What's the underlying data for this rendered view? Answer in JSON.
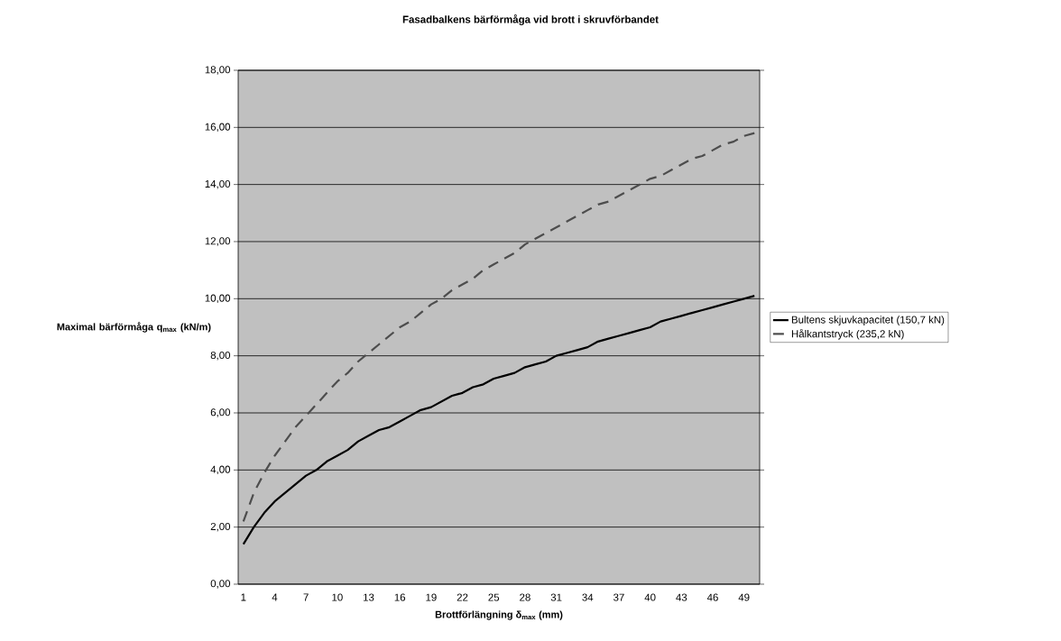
{
  "chart_data": {
    "type": "line",
    "title": "Fasadbalkens bärförmåga vid brott i skruvförbandet",
    "xlabel": "Brottförlängning δ$_{max}$ (mm)",
    "ylabel": "Maximal bärförmåga q$_{max}$ (kN/m)",
    "categories": [
      "1",
      null,
      null,
      "4",
      null,
      null,
      "7",
      null,
      null,
      "10",
      null,
      null,
      "13",
      null,
      null,
      "16",
      null,
      null,
      "19",
      null,
      null,
      "22",
      null,
      null,
      "25",
      null,
      null,
      "28",
      null,
      null,
      "31",
      null,
      null,
      "34",
      null,
      null,
      "37",
      null,
      null,
      "40",
      null,
      null,
      "43",
      null,
      null,
      "46",
      null,
      null,
      "49",
      null
    ],
    "ylim": [
      0,
      18
    ],
    "yticks": [
      {
        "value": 0,
        "label": "0,00"
      },
      {
        "value": 2,
        "label": "2,00"
      },
      {
        "value": 4,
        "label": "4,00"
      },
      {
        "value": 6,
        "label": "6,00"
      },
      {
        "value": 8,
        "label": "8,00"
      },
      {
        "value": 10,
        "label": "10,00"
      },
      {
        "value": 12,
        "label": "12,00"
      },
      {
        "value": 14,
        "label": "14,00"
      },
      {
        "value": 16,
        "label": "16,00"
      },
      {
        "value": 18,
        "label": "18,00"
      }
    ],
    "grid": "y",
    "legend": "right",
    "marker": "none",
    "series": [
      {
        "name": "Bultens skjuvkapacitet (150,7 kN)",
        "color": "#000000",
        "line_style": "solid",
        "values": [
          1.4,
          2.0,
          2.5,
          2.9,
          3.2,
          3.5,
          3.8,
          4.0,
          4.3,
          4.5,
          4.7,
          5.0,
          5.2,
          5.4,
          5.5,
          5.7,
          5.9,
          6.1,
          6.2,
          6.4,
          6.6,
          6.7,
          6.9,
          7.0,
          7.2,
          7.3,
          7.4,
          7.6,
          7.7,
          7.8,
          8.0,
          8.1,
          8.2,
          8.3,
          8.5,
          8.6,
          8.7,
          8.8,
          8.9,
          9.0,
          9.2,
          9.3,
          9.4,
          9.5,
          9.6,
          9.7,
          9.8,
          9.9,
          10.0,
          10.1
        ]
      },
      {
        "name": "Hålkantstryck (235,2 kN)",
        "color": "#4d4d4d",
        "line_style": "dashed",
        "values": [
          2.2,
          3.2,
          3.9,
          4.5,
          5.0,
          5.5,
          5.9,
          6.3,
          6.7,
          7.1,
          7.4,
          7.8,
          8.1,
          8.4,
          8.7,
          9.0,
          9.2,
          9.5,
          9.8,
          10.0,
          10.3,
          10.5,
          10.7,
          11.0,
          11.2,
          11.4,
          11.6,
          11.9,
          12.1,
          12.3,
          12.5,
          12.7,
          12.9,
          13.1,
          13.3,
          13.4,
          13.6,
          13.8,
          14.0,
          14.2,
          14.3,
          14.5,
          14.7,
          14.9,
          15.0,
          15.2,
          15.4,
          15.5,
          15.7,
          15.8
        ]
      }
    ]
  }
}
